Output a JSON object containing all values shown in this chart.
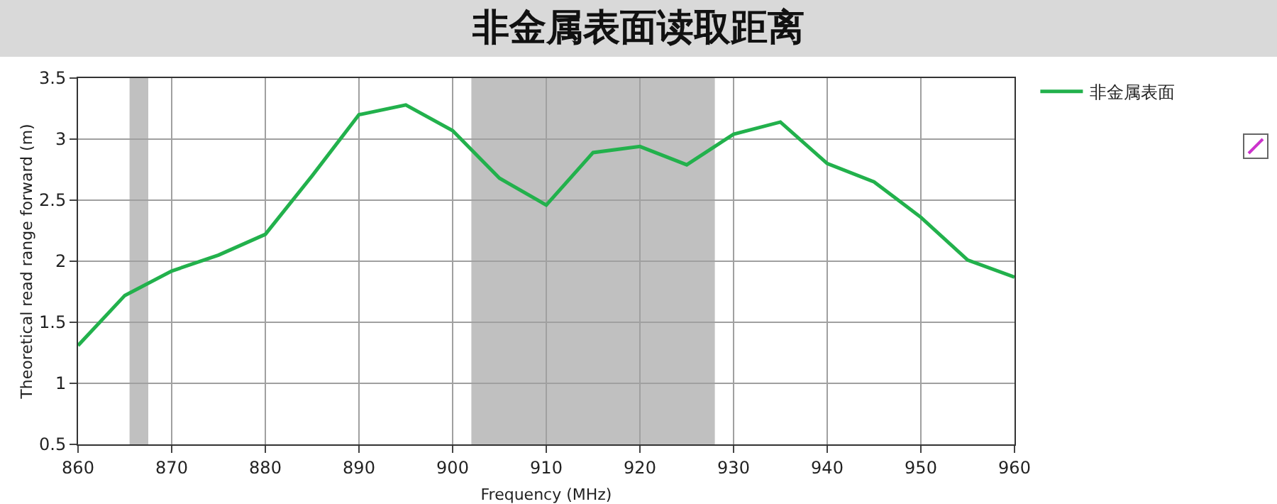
{
  "chart_data": {
    "type": "line",
    "title": "非金属表面读取距离",
    "xlabel": "Frequency (MHz)",
    "ylabel": "Theoretical read range forward (m)",
    "x": [
      860,
      865,
      870,
      875,
      880,
      885,
      890,
      895,
      900,
      905,
      910,
      915,
      920,
      925,
      930,
      935,
      940,
      945,
      950,
      955,
      960
    ],
    "series": [
      {
        "name": "非金属表面",
        "color": "#22b14c",
        "values": [
          1.31,
          1.72,
          1.92,
          2.05,
          2.22,
          2.7,
          3.2,
          3.28,
          3.07,
          2.68,
          2.46,
          2.89,
          2.94,
          2.79,
          3.04,
          3.14,
          2.8,
          2.65,
          2.36,
          2.01,
          1.87
        ]
      }
    ],
    "xlim": [
      860,
      960
    ],
    "xticks": [
      860,
      870,
      880,
      890,
      900,
      910,
      920,
      930,
      940,
      950,
      960
    ],
    "ylim": [
      0.5,
      3.5
    ],
    "yticks": [
      0.5,
      1,
      1.5,
      2,
      2.5,
      3,
      3.5
    ],
    "bands": [
      {
        "axis": "x",
        "from": 865.5,
        "to": 867.5,
        "color": "#c0c0c0"
      },
      {
        "axis": "x",
        "from": 902,
        "to": 928,
        "color": "#c0c0c0"
      }
    ],
    "grid": true,
    "legend": "top right",
    "marker": "none",
    "line_style": "solid"
  }
}
